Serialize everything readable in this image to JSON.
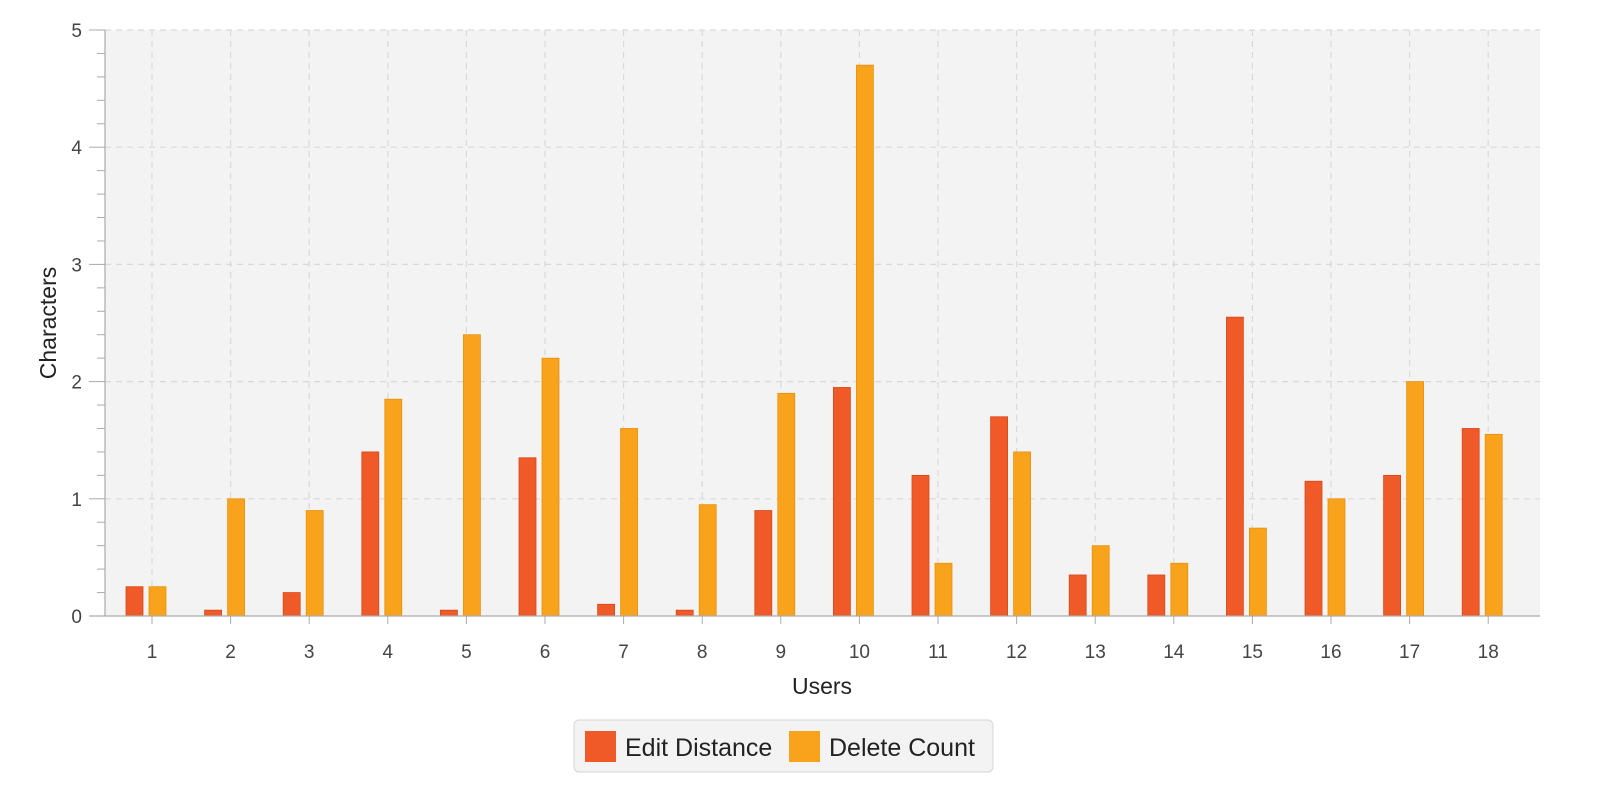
{
  "chart_data": {
    "type": "bar",
    "title": "",
    "xlabel": "Users",
    "ylabel": "Characters",
    "categories": [
      "1",
      "2",
      "3",
      "4",
      "5",
      "6",
      "7",
      "8",
      "9",
      "10",
      "11",
      "12",
      "13",
      "14",
      "15",
      "16",
      "17",
      "18"
    ],
    "series": [
      {
        "name": "Edit Distance",
        "color": "#f05a28",
        "values": [
          0.25,
          0.05,
          0.2,
          1.4,
          0.05,
          1.35,
          0.1,
          0.05,
          0.9,
          1.95,
          1.2,
          1.7,
          0.35,
          0.35,
          2.55,
          1.15,
          1.2,
          1.6
        ]
      },
      {
        "name": "Delete Count",
        "color": "#f8a31b",
        "values": [
          0.25,
          1.0,
          0.9,
          1.85,
          2.4,
          2.2,
          1.6,
          0.95,
          1.9,
          4.7,
          0.45,
          1.4,
          0.6,
          0.45,
          0.75,
          1.0,
          2.0,
          1.55
        ]
      }
    ],
    "ylim": [
      0,
      5
    ],
    "yticks": [
      0,
      1,
      2,
      3,
      4,
      5
    ],
    "grid": true,
    "legend_position": "bottom-center",
    "plot_background": "#f3f3f3"
  }
}
